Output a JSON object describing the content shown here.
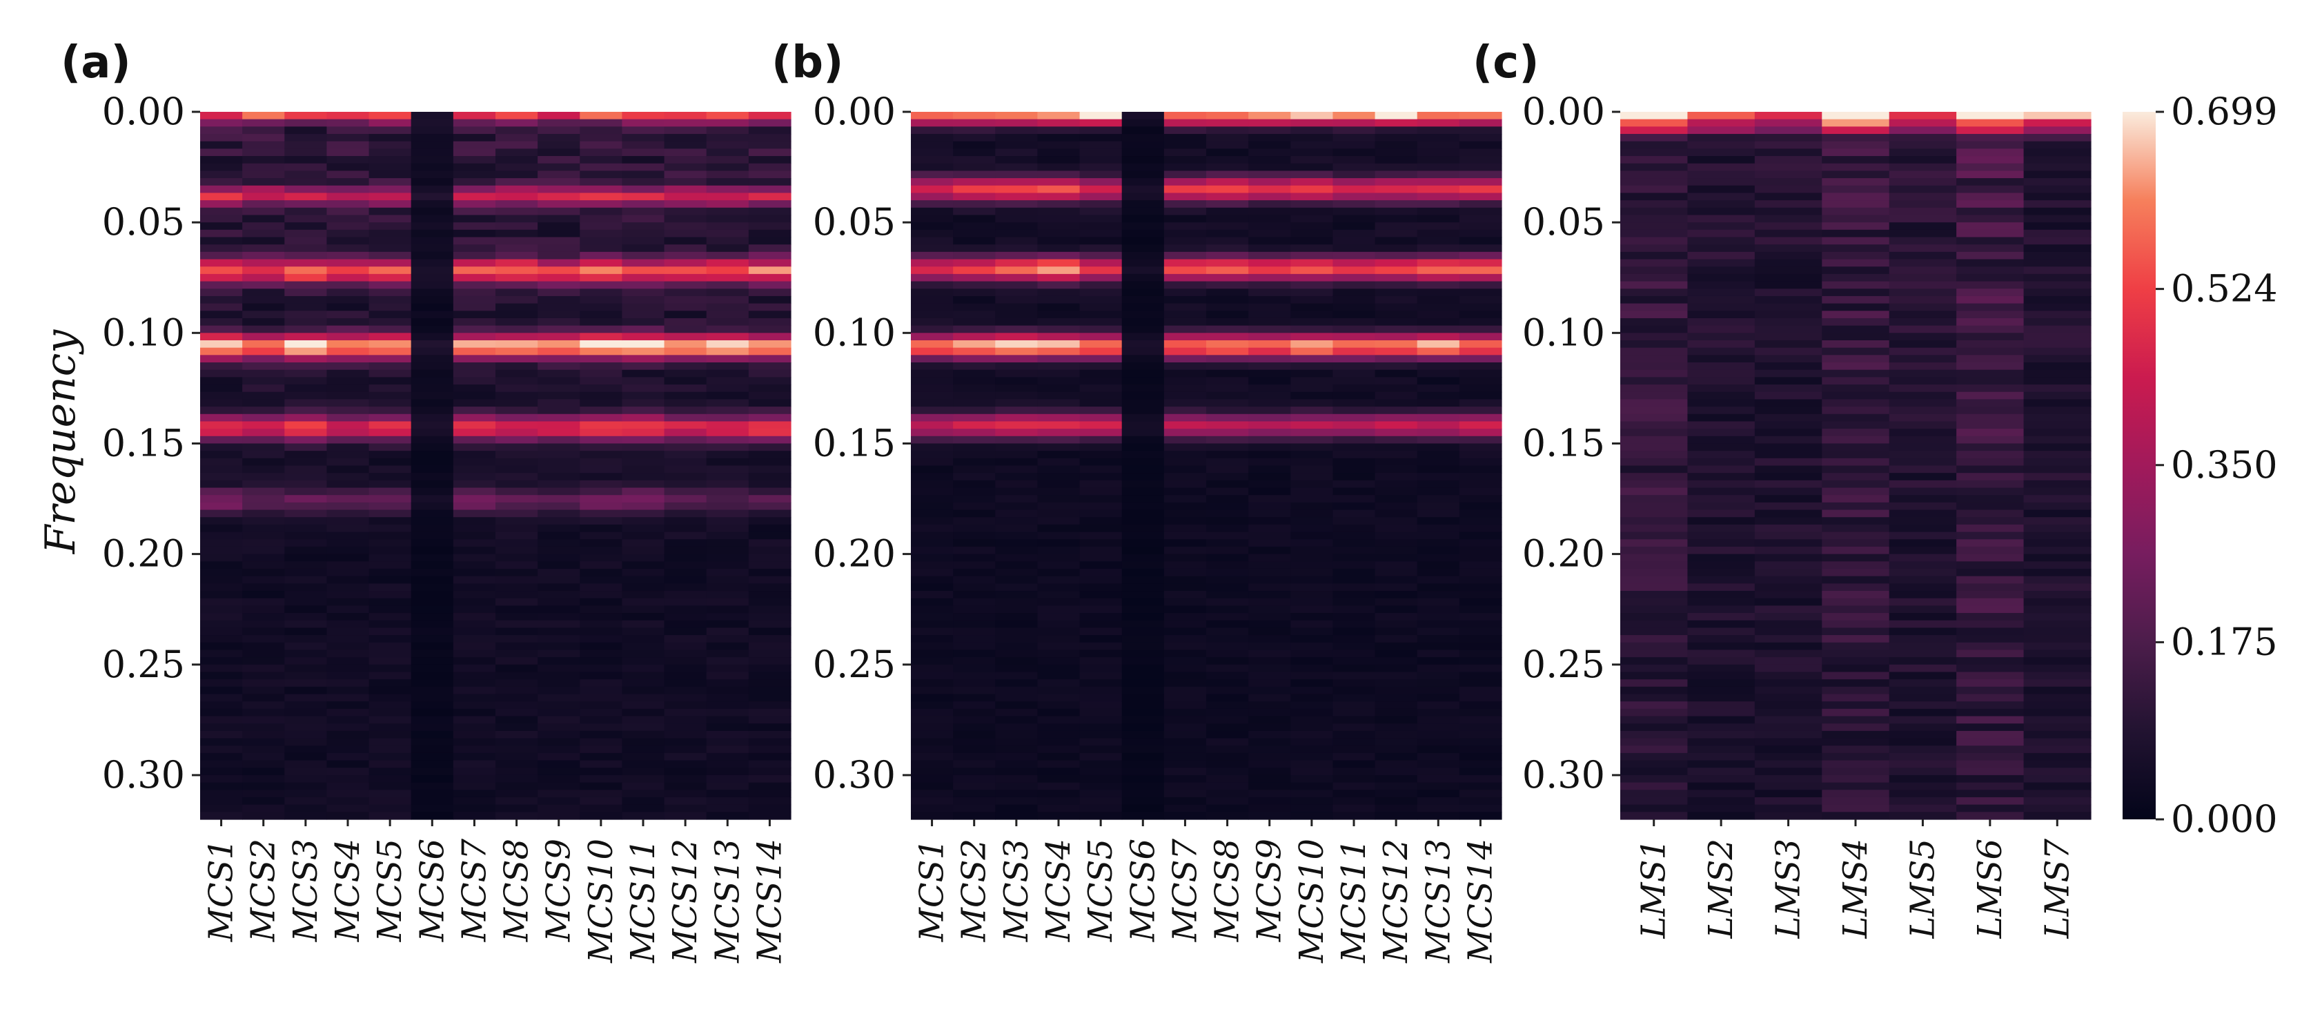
{
  "figure": {
    "ylabel": "Frequency"
  },
  "colorbar": {
    "ticks": [
      "0.000",
      "0.175",
      "0.350",
      "0.524",
      "0.699"
    ],
    "min": 0.0,
    "max": 0.699
  },
  "chart_data": [
    {
      "type": "heatmap",
      "panel_label": "(a)",
      "ylabel": "Frequency",
      "ylim": [
        0.0,
        0.32
      ],
      "yticks": [
        "0.00",
        "0.05",
        "0.10",
        "0.15",
        "0.20",
        "0.25",
        "0.30"
      ],
      "categories": [
        "MCS1",
        "MCS2",
        "MCS3",
        "MCS4",
        "MCS5",
        "MCS6",
        "MCS7",
        "MCS8",
        "MCS9",
        "MCS10",
        "MCS11",
        "MCS12",
        "MCS13",
        "MCS14"
      ],
      "bands": [
        {
          "freq": 0.002,
          "width": 0.002,
          "values": [
            0.38,
            0.42,
            0.4,
            0.38,
            0.42,
            0.02,
            0.4,
            0.42,
            0.38,
            0.44,
            0.4,
            0.4,
            0.4,
            0.42
          ]
        },
        {
          "freq": 0.038,
          "width": 0.003,
          "values": [
            0.36,
            0.34,
            0.36,
            0.32,
            0.36,
            0.04,
            0.36,
            0.34,
            0.32,
            0.36,
            0.34,
            0.32,
            0.34,
            0.33
          ]
        },
        {
          "freq": 0.072,
          "width": 0.004,
          "values": [
            0.45,
            0.4,
            0.52,
            0.45,
            0.48,
            0.05,
            0.45,
            0.5,
            0.42,
            0.52,
            0.45,
            0.45,
            0.48,
            0.5
          ]
        },
        {
          "freq": 0.106,
          "width": 0.004,
          "values": [
            0.62,
            0.55,
            0.68,
            0.55,
            0.58,
            0.05,
            0.58,
            0.6,
            0.55,
            0.65,
            0.66,
            0.58,
            0.62,
            0.55
          ]
        },
        {
          "freq": 0.143,
          "width": 0.004,
          "values": [
            0.45,
            0.4,
            0.48,
            0.4,
            0.42,
            0.05,
            0.45,
            0.42,
            0.4,
            0.5,
            0.48,
            0.4,
            0.4,
            0.45
          ]
        },
        {
          "freq": 0.176,
          "width": 0.004,
          "values": [
            0.22,
            0.16,
            0.18,
            0.15,
            0.16,
            0.03,
            0.2,
            0.18,
            0.16,
            0.22,
            0.24,
            0.14,
            0.14,
            0.14
          ]
        }
      ],
      "baseline_low_freq": 0.12,
      "baseline_high_freq": 0.04
    },
    {
      "type": "heatmap",
      "panel_label": "(b)",
      "ylim": [
        0.0,
        0.32
      ],
      "yticks": [
        "0.00",
        "0.05",
        "0.10",
        "0.15",
        "0.20",
        "0.25",
        "0.30"
      ],
      "categories": [
        "MCS1",
        "MCS2",
        "MCS3",
        "MCS4",
        "MCS5",
        "MCS6",
        "MCS7",
        "MCS8",
        "MCS9",
        "MCS10",
        "MCS11",
        "MCS12",
        "MCS13",
        "MCS14"
      ],
      "bands": [
        {
          "freq": 0.002,
          "width": 0.003,
          "values": [
            0.55,
            0.52,
            0.55,
            0.6,
            0.65,
            0.04,
            0.55,
            0.55,
            0.55,
            0.6,
            0.55,
            0.65,
            0.55,
            0.55
          ]
        },
        {
          "freq": 0.035,
          "width": 0.004,
          "values": [
            0.42,
            0.48,
            0.5,
            0.5,
            0.4,
            0.04,
            0.45,
            0.48,
            0.42,
            0.48,
            0.4,
            0.42,
            0.45,
            0.45
          ]
        },
        {
          "freq": 0.071,
          "width": 0.004,
          "values": [
            0.45,
            0.48,
            0.55,
            0.62,
            0.45,
            0.04,
            0.5,
            0.52,
            0.48,
            0.5,
            0.45,
            0.48,
            0.55,
            0.55
          ]
        },
        {
          "freq": 0.106,
          "width": 0.004,
          "values": [
            0.55,
            0.62,
            0.68,
            0.65,
            0.55,
            0.05,
            0.55,
            0.58,
            0.55,
            0.62,
            0.55,
            0.55,
            0.65,
            0.55
          ]
        },
        {
          "freq": 0.142,
          "width": 0.004,
          "values": [
            0.38,
            0.42,
            0.45,
            0.45,
            0.42,
            0.04,
            0.38,
            0.36,
            0.35,
            0.36,
            0.35,
            0.4,
            0.38,
            0.42
          ]
        }
      ],
      "baseline_low_freq": 0.05,
      "baseline_high_freq": 0.03
    },
    {
      "type": "heatmap",
      "panel_label": "(c)",
      "ylim": [
        0.0,
        0.32
      ],
      "yticks": [
        "0.00",
        "0.05",
        "0.10",
        "0.15",
        "0.20",
        "0.25",
        "0.30"
      ],
      "categories": [
        "LMS1",
        "LMS2",
        "LMS3",
        "LMS4",
        "LMS5",
        "LMS6",
        "LMS7"
      ],
      "bands": [
        {
          "freq": 0.002,
          "width": 0.002,
          "values": [
            0.62,
            0.5,
            0.42,
            0.69,
            0.4,
            0.55,
            0.55
          ]
        },
        {
          "freq": 0.007,
          "width": 0.002,
          "values": [
            0.3,
            0.28,
            0.26,
            0.4,
            0.26,
            0.32,
            0.32
          ]
        }
      ],
      "column_base": [
        0.15,
        0.1,
        0.1,
        0.15,
        0.11,
        0.17,
        0.1
      ],
      "baseline_low_freq": 0.12,
      "baseline_high_freq": 0.09
    }
  ]
}
